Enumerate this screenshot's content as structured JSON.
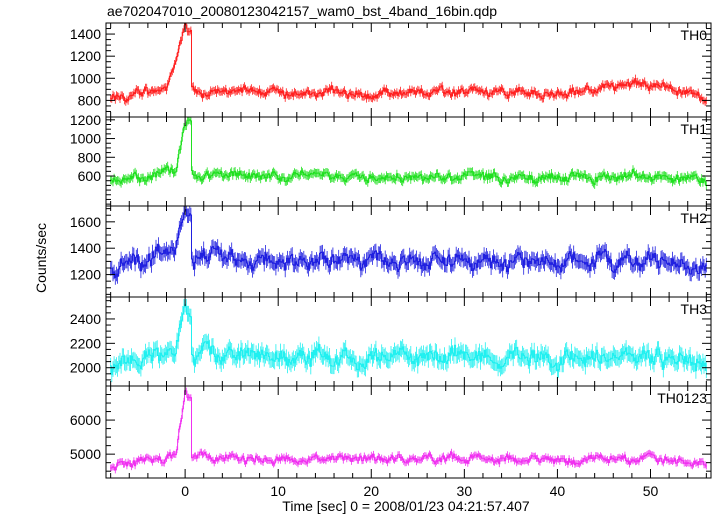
{
  "title": "ae702047010_20080123042157_wam0_bst_4band_16bin.qdp",
  "xlabel": "Time [sec] 0 = 2008/01/23 04:21:57.407",
  "ylabel": "Counts/sec",
  "chart_data": {
    "type": "line",
    "title": "ae702047010_20080123042157_wam0_bst_4band_16bin.qdp",
    "xlabel": "Time [sec] 0 = 2008/01/23 04:21:57.407",
    "ylabel": "Counts/sec",
    "xlim": [
      -8.5,
      56.5
    ],
    "x_ticks": [
      0,
      10,
      20,
      30,
      40,
      50
    ],
    "x_tick_labels": [
      "0",
      "10",
      "20",
      "30",
      "40",
      "50"
    ],
    "grid": false,
    "panels": [
      {
        "name": "TH0",
        "color": "#ff2020",
        "ylim": [
          650,
          1500
        ],
        "y_ticks": [
          800,
          1000,
          1200,
          1400
        ],
        "y_tick_labels": [
          "800",
          "1000",
          "1200",
          "1400"
        ],
        "baseline": 870,
        "noise": 45,
        "err": 35,
        "burst_x": [
          0.0,
          0.5
        ],
        "burst_values": [
          1480,
          1420
        ],
        "series": [
          {
            "x": -8.0,
            "y": 820
          },
          {
            "x": -5.0,
            "y": 870
          },
          {
            "x": -2.0,
            "y": 900
          },
          {
            "x": 0.0,
            "y": 1480
          },
          {
            "x": 0.5,
            "y": 1420
          },
          {
            "x": 1.0,
            "y": 880
          },
          {
            "x": 10.0,
            "y": 880
          },
          {
            "x": 20.0,
            "y": 860
          },
          {
            "x": 30.0,
            "y": 880
          },
          {
            "x": 40.0,
            "y": 860
          },
          {
            "x": 49.0,
            "y": 960
          },
          {
            "x": 56.0,
            "y": 820
          }
        ]
      },
      {
        "name": "TH1",
        "color": "#20e020",
        "ylim": [
          280,
          1230
        ],
        "y_ticks": [
          600,
          800,
          1000,
          1200
        ],
        "y_tick_labels": [
          "600",
          "800",
          "1000",
          "1200"
        ],
        "baseline": 590,
        "noise": 55,
        "err": 45,
        "burst_x": [
          0.0,
          0.5
        ],
        "burst_values": [
          1150,
          1200
        ],
        "series": [
          {
            "x": -8.0,
            "y": 560
          },
          {
            "x": -4.0,
            "y": 600
          },
          {
            "x": -1.0,
            "y": 680
          },
          {
            "x": 0.0,
            "y": 1150
          },
          {
            "x": 0.5,
            "y": 1200
          },
          {
            "x": 1.0,
            "y": 620
          },
          {
            "x": 10.0,
            "y": 600
          },
          {
            "x": 20.0,
            "y": 590
          },
          {
            "x": 30.0,
            "y": 600
          },
          {
            "x": 40.0,
            "y": 580
          },
          {
            "x": 50.0,
            "y": 590
          },
          {
            "x": 56.0,
            "y": 560
          }
        ]
      },
      {
        "name": "TH2",
        "color": "#2020e0",
        "ylim": [
          1030,
          1720
        ],
        "y_ticks": [
          1200,
          1400,
          1600
        ],
        "y_tick_labels": [
          "1200",
          "1400",
          "1600"
        ],
        "baseline": 1300,
        "noise": 70,
        "err": 55,
        "burst_x": [
          0.0,
          0.5
        ],
        "burst_values": [
          1690,
          1660
        ],
        "series": [
          {
            "x": -8.0,
            "y": 1250
          },
          {
            "x": -4.0,
            "y": 1320
          },
          {
            "x": -1.0,
            "y": 1380
          },
          {
            "x": 0.0,
            "y": 1690
          },
          {
            "x": 0.5,
            "y": 1660
          },
          {
            "x": 1.0,
            "y": 1350
          },
          {
            "x": 10.0,
            "y": 1300
          },
          {
            "x": 20.0,
            "y": 1310
          },
          {
            "x": 30.0,
            "y": 1300
          },
          {
            "x": 40.0,
            "y": 1290
          },
          {
            "x": 50.0,
            "y": 1300
          },
          {
            "x": 56.0,
            "y": 1250
          }
        ]
      },
      {
        "name": "TH3",
        "color": "#20f0f0",
        "ylim": [
          1850,
          2580
        ],
        "y_ticks": [
          2000,
          2200,
          2400
        ],
        "y_tick_labels": [
          "2000",
          "2200",
          "2400"
        ],
        "baseline": 2080,
        "noise": 80,
        "err": 65,
        "burst_x": [
          0.0,
          0.5
        ],
        "burst_values": [
          2520,
          2420
        ],
        "series": [
          {
            "x": -8.0,
            "y": 2000
          },
          {
            "x": -4.0,
            "y": 2080
          },
          {
            "x": -1.0,
            "y": 2150
          },
          {
            "x": 0.0,
            "y": 2520
          },
          {
            "x": 0.5,
            "y": 2420
          },
          {
            "x": 1.0,
            "y": 2150
          },
          {
            "x": 10.0,
            "y": 2080
          },
          {
            "x": 20.0,
            "y": 2090
          },
          {
            "x": 30.0,
            "y": 2080
          },
          {
            "x": 40.0,
            "y": 2070
          },
          {
            "x": 50.0,
            "y": 2110
          },
          {
            "x": 56.0,
            "y": 2000
          }
        ]
      },
      {
        "name": "TH0123",
        "color": "#f030f0",
        "ylim": [
          4300,
          7000
        ],
        "y_ticks": [
          5000,
          6000
        ],
        "y_tick_labels": [
          "5000",
          "6000"
        ],
        "baseline": 4850,
        "noise": 130,
        "err": 100,
        "burst_x": [
          0.0,
          0.5
        ],
        "burst_values": [
          6850,
          6650
        ],
        "series": [
          {
            "x": -8.0,
            "y": 4600
          },
          {
            "x": -4.0,
            "y": 4850
          },
          {
            "x": -1.0,
            "y": 4950
          },
          {
            "x": 0.0,
            "y": 6850
          },
          {
            "x": 0.5,
            "y": 6650
          },
          {
            "x": 1.0,
            "y": 4900
          },
          {
            "x": 10.0,
            "y": 4850
          },
          {
            "x": 20.0,
            "y": 4850
          },
          {
            "x": 30.0,
            "y": 4850
          },
          {
            "x": 40.0,
            "y": 4830
          },
          {
            "x": 50.0,
            "y": 4900
          },
          {
            "x": 56.0,
            "y": 4650
          }
        ]
      }
    ]
  }
}
